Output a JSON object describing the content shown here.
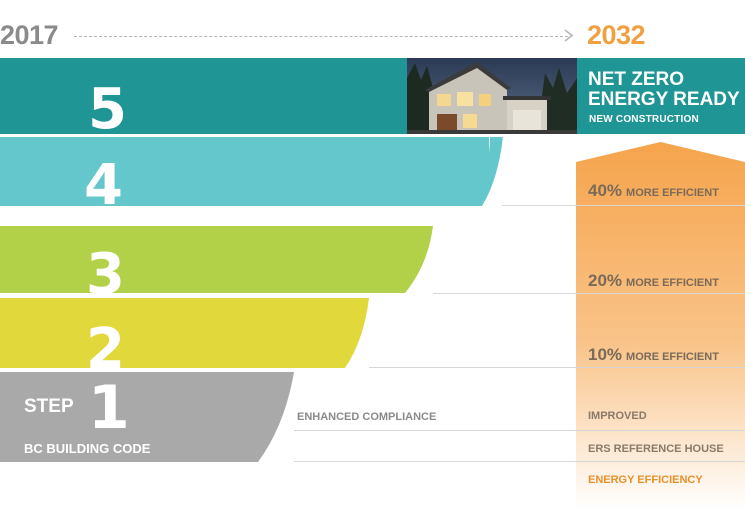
{
  "timeline": {
    "start_year": "2017",
    "end_year": "2032"
  },
  "steps": [
    {
      "number": "5",
      "color": "#1f9596"
    },
    {
      "number": "4",
      "color": "#64c7cb"
    },
    {
      "number": "3",
      "color": "#b2d148"
    },
    {
      "number": "2",
      "color": "#e1d93b"
    },
    {
      "number": "1",
      "color": "#a9a9a9"
    }
  ],
  "step_label": "STEP",
  "bc_building_code": "BC BUILDING CODE",
  "enhanced_compliance": "ENHANCED COMPLIANCE",
  "net_zero": {
    "title": "NET ZERO ENERGY READY",
    "subtitle": "NEW CONSTRUCTION"
  },
  "efficiency": [
    {
      "percent": "40%",
      "label": "MORE EFFICIENT"
    },
    {
      "percent": "20%",
      "label": "MORE EFFICIENT"
    },
    {
      "percent": "10%",
      "label": "MORE EFFICIENT"
    }
  ],
  "baseline": {
    "improved": "IMPROVED",
    "ers_reference": "ERS REFERENCE HOUSE",
    "energy_efficiency": "ENERGY EFFICIENCY"
  },
  "accent_color": "#f5a34a"
}
